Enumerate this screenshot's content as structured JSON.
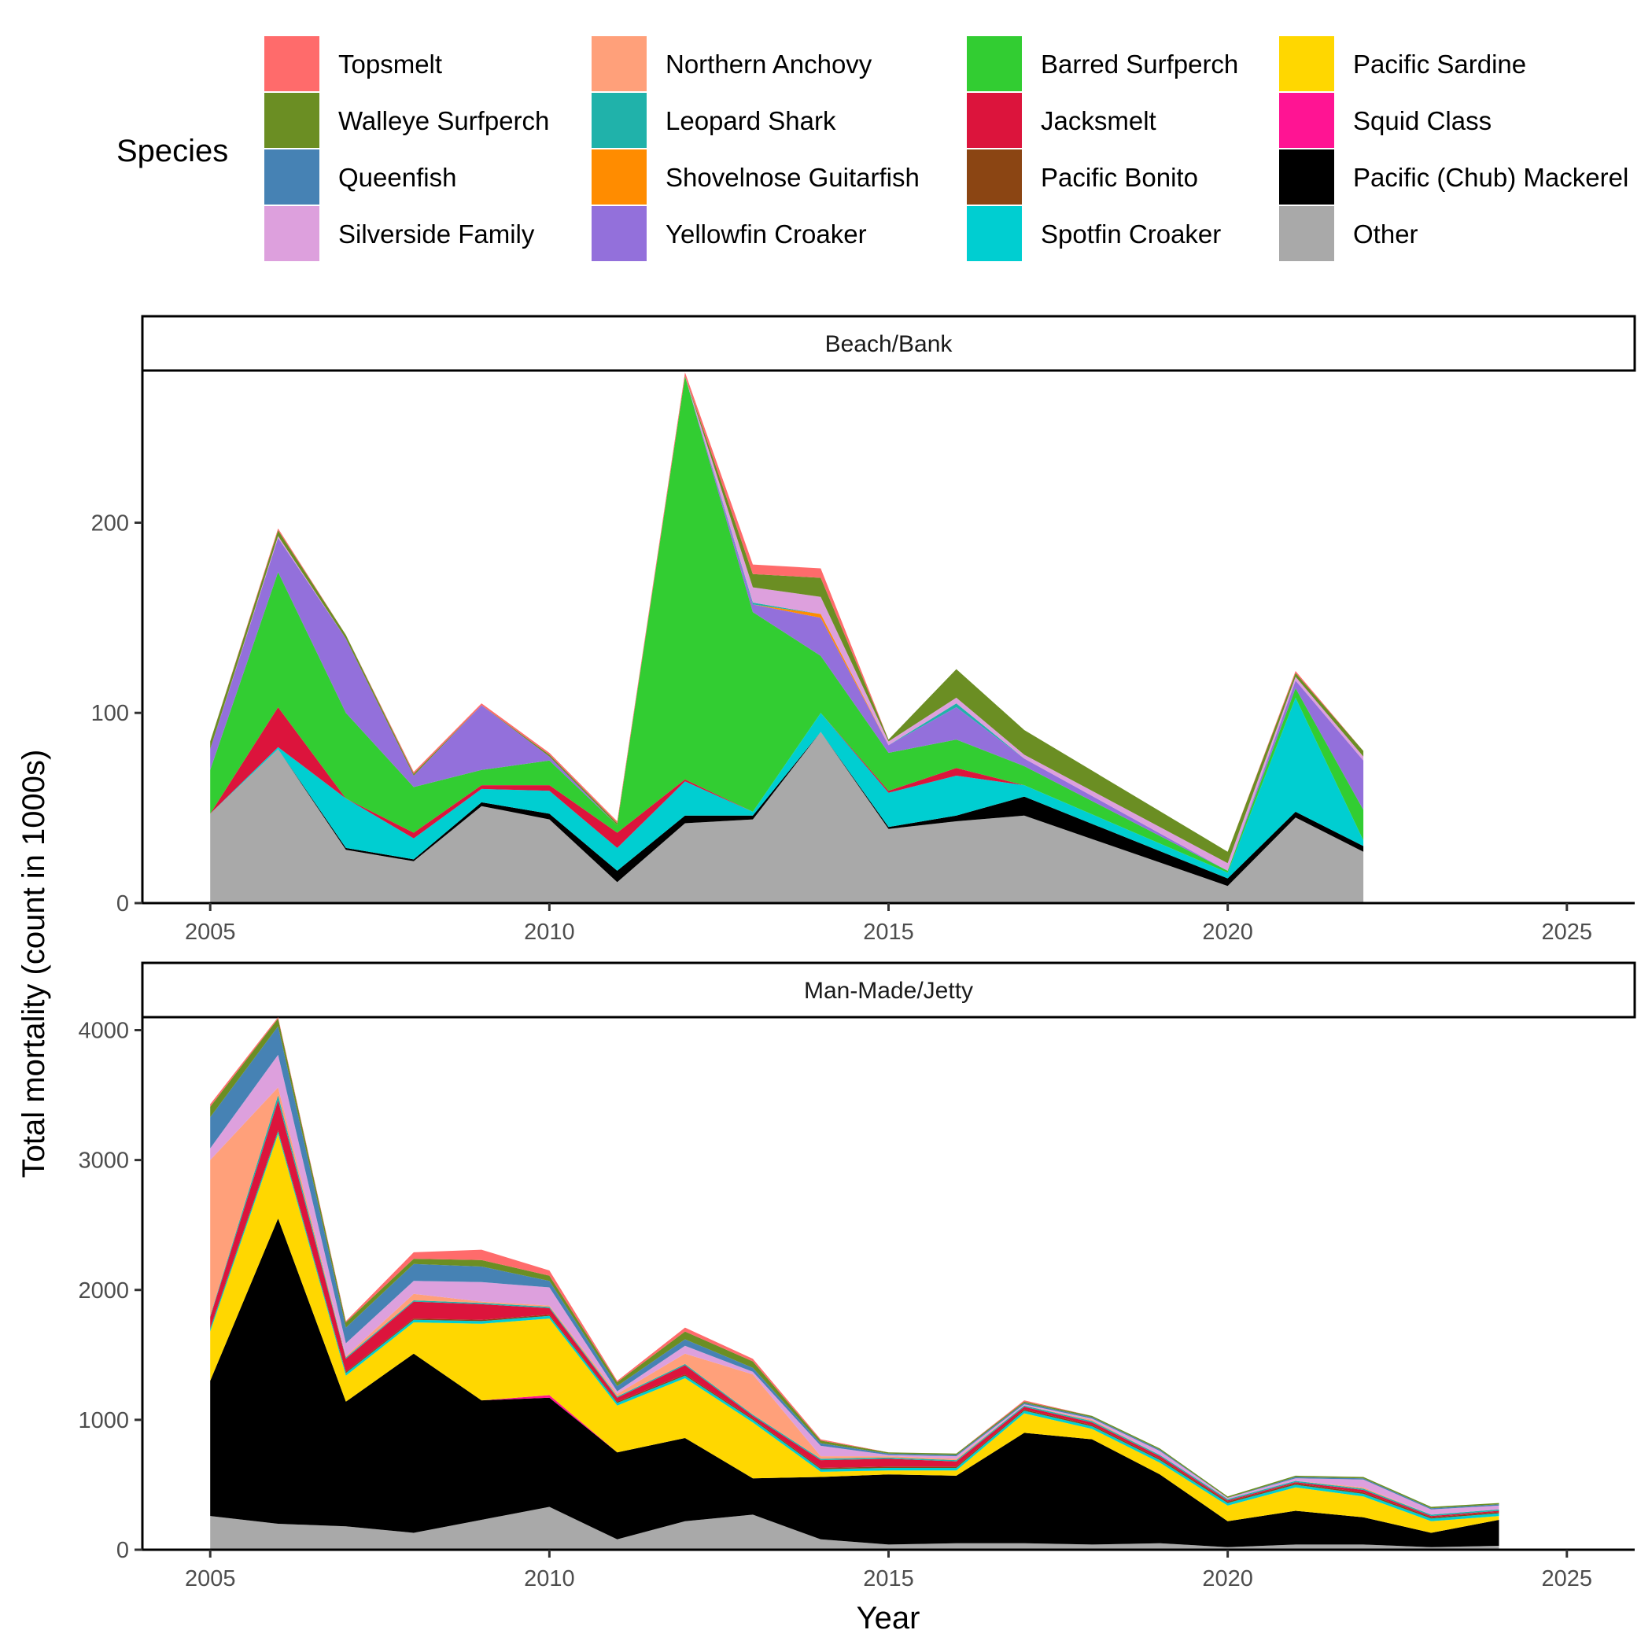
{
  "chart_data": {
    "type": "area",
    "stacked": true,
    "xlabel": "Year",
    "ylabel": "Total mortality (count in 1000s)",
    "legend": {
      "title": "Species",
      "position": "top",
      "stack_order_bottom_to_top": [
        "Other",
        "Pacific (Chub) Mackerel",
        "Squid Class",
        "Pacific Sardine",
        "Spotfin Croaker",
        "Pacific Bonito",
        "Jacksmelt",
        "Barred Surfperch",
        "Yellowfin Croaker",
        "Shovelnose Guitarfish",
        "Leopard Shark",
        "Northern Anchovy",
        "Silverside Family",
        "Queenfish",
        "Walleye Surfperch",
        "Topsmelt"
      ],
      "entries": [
        {
          "name": "Topsmelt",
          "color": "#FF6B6B"
        },
        {
          "name": "Walleye Surfperch",
          "color": "#6B8E23"
        },
        {
          "name": "Queenfish",
          "color": "#4682B4"
        },
        {
          "name": "Silverside Family",
          "color": "#DDA0DD"
        },
        {
          "name": "Northern Anchovy",
          "color": "#FFA07A"
        },
        {
          "name": "Leopard Shark",
          "color": "#20B2AA"
        },
        {
          "name": "Shovelnose Guitarfish",
          "color": "#FF8C00"
        },
        {
          "name": "Yellowfin Croaker",
          "color": "#9370DB"
        },
        {
          "name": "Barred Surfperch",
          "color": "#32CD32"
        },
        {
          "name": "Jacksmelt",
          "color": "#DC143C"
        },
        {
          "name": "Pacific Bonito",
          "color": "#8B4513"
        },
        {
          "name": "Spotfin Croaker",
          "color": "#00CED1"
        },
        {
          "name": "Pacific Sardine",
          "color": "#FFD700"
        },
        {
          "name": "Squid Class",
          "color": "#FF1493"
        },
        {
          "name": "Pacific (Chub) Mackerel",
          "color": "#000000"
        },
        {
          "name": "Other",
          "color": "#A9A9A9"
        }
      ]
    },
    "panels": [
      {
        "title": "Beach/Bank",
        "xlim": [
          2004,
          2026
        ],
        "ylim": [
          0,
          280
        ],
        "xticks": [
          2005,
          2010,
          2015,
          2020,
          2025
        ],
        "yticks": [
          0,
          100,
          200
        ],
        "x": [
          2005,
          2006,
          2007,
          2008,
          2009,
          2010,
          2011,
          2012,
          2013,
          2014,
          2015,
          2016,
          2017,
          2020,
          2021,
          2022
        ],
        "series": [
          {
            "name": "Other",
            "values": [
              47,
              81,
              28,
              22,
              51,
              44,
              11,
              42,
              44,
              90,
              39,
              43,
              46,
              9,
              45,
              27
            ]
          },
          {
            "name": "Pacific (Chub) Mackerel",
            "values": [
              0,
              0,
              1,
              1,
              2,
              3,
              6,
              4,
              2,
              0,
              1,
              3,
              10,
              4,
              3,
              3
            ]
          },
          {
            "name": "Squid Class",
            "values": [
              0,
              0,
              0,
              0,
              0,
              0,
              0,
              0,
              0,
              0,
              0,
              0,
              0,
              0,
              0,
              0
            ]
          },
          {
            "name": "Pacific Sardine",
            "values": [
              0,
              0,
              0,
              0,
              0,
              0,
              0,
              0,
              0,
              0,
              0,
              0,
              0,
              0,
              0,
              0
            ]
          },
          {
            "name": "Spotfin Croaker",
            "values": [
              0,
              1,
              26,
              11,
              7,
              12,
              12,
              18,
              2,
              10,
              18,
              21,
              6,
              3,
              60,
              3
            ]
          },
          {
            "name": "Pacific Bonito",
            "values": [
              0,
              0,
              0,
              0,
              0,
              0,
              0,
              0,
              0,
              0,
              0,
              0,
              0,
              0,
              0,
              0
            ]
          },
          {
            "name": "Jacksmelt",
            "values": [
              0,
              21,
              0,
              3,
              2,
              3,
              8,
              1,
              0,
              0,
              1,
              4,
              0,
              0,
              0,
              0
            ]
          },
          {
            "name": "Barred Surfperch",
            "values": [
              23,
              71,
              45,
              24,
              8,
              13,
              4,
              212,
              105,
              30,
              20,
              15,
              10,
              1,
              5,
              16
            ]
          },
          {
            "name": "Yellowfin Croaker",
            "values": [
              11,
              18,
              39,
              6,
              34,
              2,
              0,
              0,
              4,
              20,
              4,
              17,
              4,
              0,
              4,
              26
            ]
          },
          {
            "name": "Shovelnose Guitarfish",
            "values": [
              0,
              0,
              0,
              0,
              0,
              0,
              0,
              0,
              0,
              2,
              0,
              0,
              0,
              0,
              0,
              0
            ]
          },
          {
            "name": "Leopard Shark",
            "values": [
              0,
              0,
              0,
              0,
              0,
              0,
              0,
              0,
              1,
              0,
              0,
              2,
              0,
              0,
              0,
              0
            ]
          },
          {
            "name": "Northern Anchovy",
            "values": [
              0,
              0,
              0,
              0,
              0,
              0,
              0,
              0,
              0,
              0,
              0,
              0,
              0,
              0,
              0,
              0
            ]
          },
          {
            "name": "Silverside Family",
            "values": [
              0,
              1,
              0,
              0,
              0,
              0,
              0,
              0,
              8,
              9,
              2,
              3,
              2,
              4,
              2,
              2
            ]
          },
          {
            "name": "Queenfish",
            "values": [
              0,
              0,
              0,
              0,
              0,
              0,
              0,
              0,
              0,
              0,
              0,
              0,
              0,
              0,
              0,
              0
            ]
          },
          {
            "name": "Walleye Surfperch",
            "values": [
              4,
              3,
              2,
              1,
              0,
              1,
              1,
              0,
              7,
              10,
              1,
              15,
              13,
              6,
              2,
              3
            ]
          },
          {
            "name": "Topsmelt",
            "values": [
              0,
              1,
              0,
              1,
              1,
              1,
              1,
              2,
              5,
              5,
              0,
              0,
              0,
              0,
              1,
              0
            ]
          }
        ]
      },
      {
        "title": "Man-Made/Jetty",
        "xlim": [
          2004,
          2026
        ],
        "ylim": [
          0,
          4100
        ],
        "xticks": [
          2005,
          2010,
          2015,
          2020,
          2025
        ],
        "yticks": [
          0,
          1000,
          2000,
          3000,
          4000
        ],
        "x": [
          2005,
          2006,
          2007,
          2008,
          2009,
          2010,
          2011,
          2012,
          2013,
          2014,
          2015,
          2016,
          2017,
          2018,
          2019,
          2020,
          2021,
          2022,
          2023,
          2024
        ],
        "series": [
          {
            "name": "Other",
            "values": [
              260,
              200,
              180,
              130,
              230,
              330,
              80,
              220,
              270,
              80,
              40,
              50,
              50,
              40,
              50,
              20,
              40,
              40,
              20,
              30
            ]
          },
          {
            "name": "Pacific (Chub) Mackerel",
            "values": [
              1040,
              2350,
              960,
              1380,
              920,
              840,
              670,
              640,
              280,
              480,
              540,
              520,
              850,
              810,
              530,
              200,
              260,
              210,
              110,
              200
            ]
          },
          {
            "name": "Squid Class",
            "values": [
              0,
              0,
              0,
              0,
              0,
              20,
              0,
              0,
              0,
              0,
              0,
              0,
              0,
              0,
              0,
              0,
              0,
              0,
              0,
              0
            ]
          },
          {
            "name": "Pacific Sardine",
            "values": [
              380,
              650,
              200,
              240,
              590,
              590,
              360,
              460,
              430,
              40,
              30,
              40,
              150,
              80,
              90,
              120,
              180,
              160,
              90,
              30
            ]
          },
          {
            "name": "Spotfin Croaker",
            "values": [
              20,
              20,
              20,
              20,
              20,
              20,
              20,
              20,
              20,
              20,
              20,
              20,
              20,
              20,
              20,
              20,
              20,
              20,
              20,
              20
            ]
          },
          {
            "name": "Pacific Bonito",
            "values": [
              10,
              10,
              10,
              10,
              10,
              10,
              10,
              10,
              10,
              10,
              10,
              10,
              10,
              10,
              10,
              10,
              10,
              10,
              10,
              10
            ]
          },
          {
            "name": "Jacksmelt",
            "values": [
              80,
              230,
              100,
              130,
              120,
              50,
              30,
              70,
              20,
              60,
              60,
              40,
              20,
              20,
              20,
              10,
              10,
              20,
              10,
              10
            ]
          },
          {
            "name": "Barred Surfperch",
            "values": [
              0,
              0,
              0,
              0,
              0,
              0,
              0,
              0,
              0,
              0,
              0,
              0,
              0,
              0,
              0,
              0,
              0,
              0,
              0,
              0
            ]
          },
          {
            "name": "Yellowfin Croaker",
            "values": [
              0,
              0,
              0,
              0,
              0,
              0,
              0,
              0,
              0,
              0,
              0,
              0,
              0,
              0,
              0,
              0,
              0,
              0,
              0,
              0
            ]
          },
          {
            "name": "Shovelnose Guitarfish",
            "values": [
              0,
              0,
              0,
              0,
              0,
              0,
              0,
              0,
              0,
              0,
              0,
              0,
              0,
              0,
              0,
              0,
              0,
              0,
              0,
              0
            ]
          },
          {
            "name": "Leopard Shark",
            "values": [
              10,
              40,
              10,
              10,
              10,
              10,
              10,
              10,
              10,
              10,
              10,
              10,
              10,
              10,
              10,
              10,
              10,
              10,
              10,
              10
            ]
          },
          {
            "name": "Northern Anchovy",
            "values": [
              1200,
              60,
              10,
              50,
              10,
              10,
              20,
              80,
              310,
              20,
              10,
              10,
              0,
              10,
              0,
              0,
              0,
              10,
              0,
              0
            ]
          },
          {
            "name": "Silverside Family",
            "values": [
              90,
              250,
              100,
              100,
              150,
              140,
              20,
              60,
              20,
              80,
              10,
              20,
              10,
              10,
              30,
              10,
              20,
              60,
              40,
              30
            ]
          },
          {
            "name": "Queenfish",
            "values": [
              240,
              220,
              120,
              130,
              120,
              50,
              40,
              50,
              30,
              20,
              10,
              10,
              10,
              10,
              10,
              0,
              10,
              10,
              10,
              10
            ]
          },
          {
            "name": "Walleye Surfperch",
            "values": [
              80,
              60,
              40,
              40,
              50,
              40,
              30,
              60,
              50,
              20,
              10,
              10,
              10,
              10,
              10,
              10,
              10,
              10,
              10,
              10
            ]
          },
          {
            "name": "Topsmelt",
            "values": [
              20,
              10,
              10,
              50,
              80,
              40,
              10,
              30,
              20,
              10,
              0,
              0,
              10,
              0,
              0,
              0,
              0,
              0,
              0,
              0
            ]
          }
        ]
      }
    ]
  }
}
